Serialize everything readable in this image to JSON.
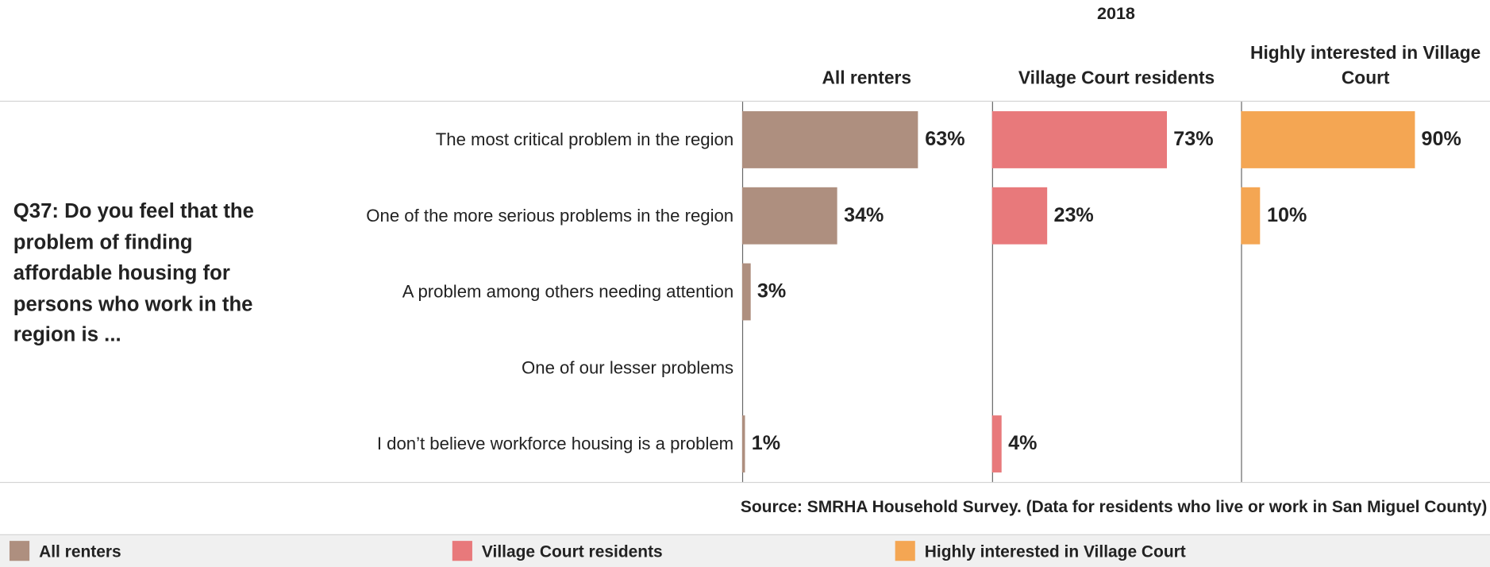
{
  "chart_data": {
    "type": "bar",
    "super_title": "2018",
    "question": "Q37: Do you feel that the problem of finding affordable housing for persons who work in the region is ...",
    "categories": [
      "The most critical problem in the region",
      "One of the more serious problems in the region",
      "A problem among others needing attention",
      "One of our lesser problems",
      "I don’t believe workforce housing is a problem"
    ],
    "series": [
      {
        "name": "All renters",
        "color": "#ae8f7f",
        "values": [
          63,
          34,
          3,
          null,
          1
        ],
        "value_labels": [
          "63%",
          "34%",
          "3%",
          null,
          "1%"
        ],
        "xlim": [
          0,
          89
        ]
      },
      {
        "name": "Village Court residents",
        "color": "#e8797b",
        "values": [
          73,
          23,
          null,
          null,
          4
        ],
        "value_labels": [
          "73%",
          "23%",
          null,
          null,
          "4%"
        ],
        "xlim": [
          0,
          104
        ]
      },
      {
        "name": "Highly interested in Village Court",
        "color": "#f4a653",
        "values": [
          90,
          10,
          null,
          null,
          null
        ],
        "value_labels": [
          "90%",
          "10%",
          null,
          null,
          null
        ],
        "xlim": [
          0,
          129
        ]
      }
    ],
    "source": "Source:  SMRHA Household Survey.  (Data for residents who live or work in San Miguel County)"
  }
}
